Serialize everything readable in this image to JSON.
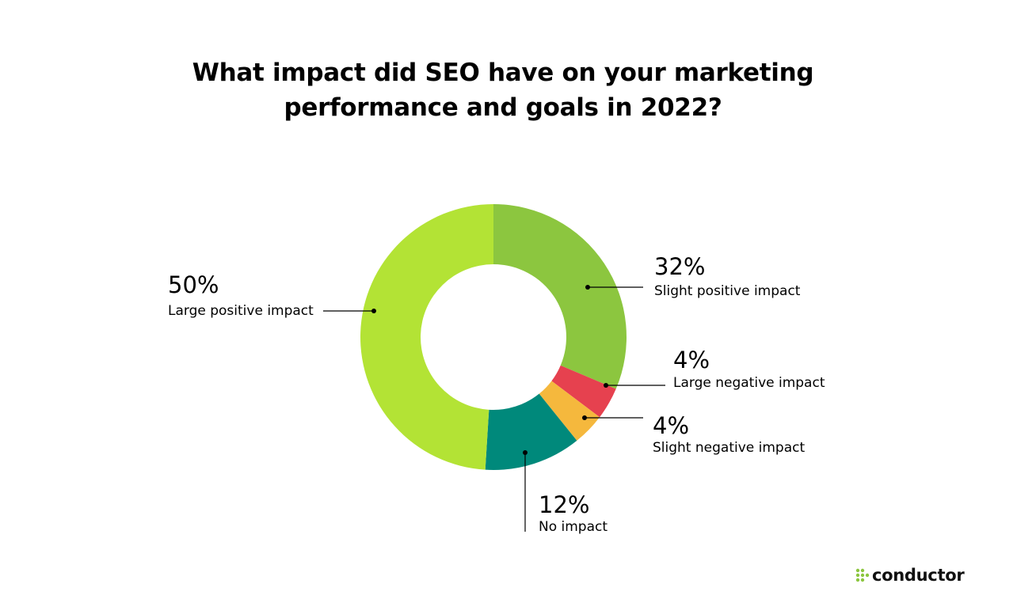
{
  "title_lines": [
    "What impact did SEO have on your marketing",
    "performance and goals in 2022?"
  ],
  "chart_data": {
    "type": "pie",
    "title": "What impact did SEO have on your marketing performance and goals in 2022?",
    "slices": [
      {
        "label": "Slight positive impact",
        "value": 32,
        "display": "32%",
        "color": "#8CC63F"
      },
      {
        "label": "Large negative impact",
        "value": 4,
        "display": "4%",
        "color": "#E6414F"
      },
      {
        "label": "Slight negative impact",
        "value": 4,
        "display": "4%",
        "color": "#F5B83D"
      },
      {
        "label": "No impact",
        "value": 12,
        "display": "12%",
        "color": "#00897B"
      },
      {
        "label": "Large positive impact",
        "value": 50,
        "display": "50%",
        "color": "#B3E335"
      }
    ],
    "donut": true,
    "legend": "none"
  },
  "brand": {
    "logo_text": "conductor",
    "logo_icon": "dots-grid-icon",
    "logo_color": "#8CC63F"
  }
}
